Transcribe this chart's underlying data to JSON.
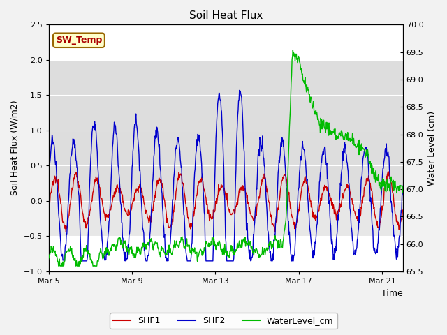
{
  "title": "Soil Heat Flux",
  "ylabel_left": "Soil Heat Flux (W/m2)",
  "ylabel_right": "Water Level (cm)",
  "xlabel": "Time",
  "ylim_left": [
    -1.0,
    2.5
  ],
  "ylim_right": [
    65.5,
    70.0
  ],
  "band_ymin": 0.0,
  "band_ymax": 2.0,
  "band2_ymin": -0.5,
  "band2_ymax": 0.0,
  "fig_bg": "#f2f2f2",
  "axes_bg": "#ffffff",
  "band_color": "#e0e0e0",
  "legend_items": [
    "SHF1",
    "SHF2",
    "WaterLevel_cm"
  ],
  "legend_colors": [
    "#cc0000",
    "#0000cc",
    "#00bb00"
  ],
  "sw_temp_label": "SW_Temp",
  "sw_temp_color": "#aa0000",
  "sw_temp_bg": "#ffffcc",
  "sw_temp_border": "#996600",
  "xtick_positions": [
    0,
    4,
    8,
    12,
    16
  ],
  "xtick_labels": [
    "Mar 5",
    "Mar 9",
    "Mar 13",
    "Mar 17",
    "Mar 21"
  ],
  "yticks_left": [
    -1.0,
    -0.5,
    0.0,
    0.5,
    1.0,
    1.5,
    2.0,
    2.5
  ],
  "yticks_right": [
    65.5,
    66.0,
    66.5,
    67.0,
    67.5,
    68.0,
    68.5,
    69.0,
    69.5,
    70.0
  ],
  "xlim": [
    0,
    17
  ]
}
